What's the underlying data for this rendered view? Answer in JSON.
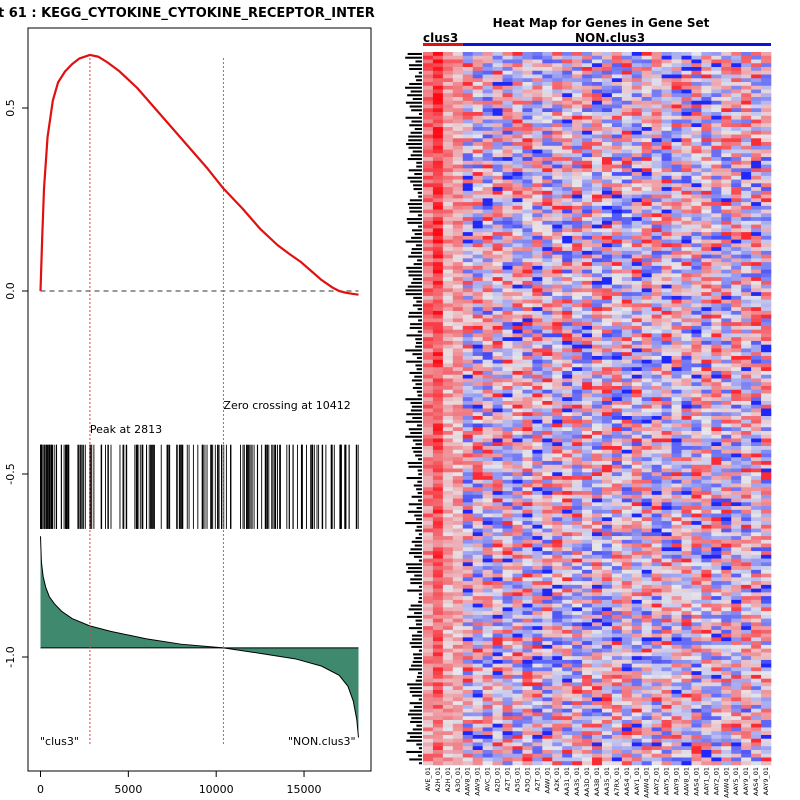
{
  "left_panel": {
    "title": "t  61 : KEGG_CYTOKINE_CYTOKINE_RECEPTOR_INTER",
    "peak_label": "Peak at 2813",
    "zero_label": "Zero crossing at 10412",
    "pos_label": "\"clus3\"",
    "neg_label": "\"NON.clus3\""
  },
  "right_panel": {
    "title": "Heat Map for Genes in Gene Set",
    "group_left": "clus3",
    "group_right": "NON.clus3"
  },
  "chart_data": [
    {
      "type": "line",
      "name": "running-enrichment-score",
      "x_ticks": [
        0,
        5000,
        10000,
        15000
      ],
      "y_ticks": [
        0.5,
        0.0,
        -0.5,
        -1.0
      ],
      "y_tick_labels": [
        "0.5",
        "0.0",
        "-0.5",
        "-1.0"
      ],
      "xlim": [
        -1000,
        18800
      ],
      "ylim": [
        -1.3,
        0.72
      ],
      "peak_position": 2813,
      "zero_crossing": 10412,
      "es_curve": {
        "x": [
          0,
          100,
          200,
          400,
          700,
          1000,
          1400,
          1800,
          2200,
          2813,
          3300,
          3800,
          4500,
          5500,
          6500,
          7500,
          8500,
          9500,
          10412,
          11500,
          12500,
          13500,
          14200,
          14800,
          15400,
          16000,
          16600,
          17000,
          17400,
          17800,
          18100
        ],
        "y": [
          0.0,
          0.15,
          0.28,
          0.42,
          0.52,
          0.57,
          0.6,
          0.62,
          0.635,
          0.645,
          0.64,
          0.625,
          0.6,
          0.555,
          0.5,
          0.445,
          0.39,
          0.335,
          0.28,
          0.225,
          0.17,
          0.125,
          0.1,
          0.08,
          0.055,
          0.03,
          0.01,
          0.0,
          -0.005,
          -0.008,
          -0.01
        ]
      },
      "hit_region": {
        "y_top": -0.42,
        "y_bottom": -0.65
      },
      "ranked_metric": {
        "x": [
          0,
          50,
          150,
          300,
          500,
          800,
          1200,
          1800,
          2800,
          4000,
          6000,
          8000,
          10412,
          12500,
          14500,
          16000,
          17000,
          17500,
          17800,
          18000,
          18100
        ],
        "y": [
          -0.67,
          -0.74,
          -0.78,
          -0.81,
          -0.835,
          -0.855,
          -0.875,
          -0.895,
          -0.915,
          -0.93,
          -0.95,
          -0.965,
          -0.975,
          -0.99,
          -1.005,
          -1.025,
          -1.05,
          -1.08,
          -1.12,
          -1.17,
          -1.22
        ],
        "baseline": -0.975
      }
    },
    {
      "type": "heatmap",
      "name": "gene-set-heatmap",
      "n_rows": 190,
      "n_cols": 35,
      "n_group_cols": 4,
      "column_labels": [
        "AVE_01",
        "A2H_01",
        "A2H_01",
        "A3O_01",
        "AAV8_01",
        "AAV9_01",
        "AVC_01",
        "A2D_01",
        "A2T_01",
        "A3G_01",
        "A3Q_01",
        "A2T_01",
        "AAW_01",
        "A2K_01",
        "AA31_01",
        "AA3S_01",
        "AA3D_01",
        "AA3B_01",
        "AA35_01",
        "A7RX_01",
        "AAS4_01",
        "AAY1_01",
        "AAW4_01",
        "AAY2_01",
        "AAY5_01",
        "AAY9_01",
        "AAV8_01",
        "AAS4_01",
        "AAY1_01",
        "AAY2_01",
        "AAW4_01",
        "AAY5_01",
        "AAY9_01",
        "AAS4_01",
        "AAY9_01"
      ]
    }
  ]
}
